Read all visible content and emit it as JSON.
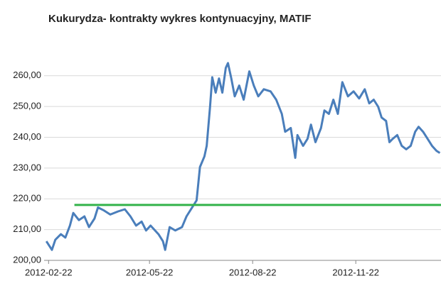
{
  "chart_data": {
    "type": "line",
    "title": "Kukurydza- kontrakty wykres kontynuacyjny, MATIF",
    "series": [
      {
        "color": "#4a7ebb",
        "x": [
          "2012-02-20",
          "2012-02-25",
          "2012-02-28",
          "2012-03-04",
          "2012-03-08",
          "2012-03-12",
          "2012-03-15",
          "2012-03-20",
          "2012-03-25",
          "2012-03-29",
          "2012-04-03",
          "2012-04-06",
          "2012-04-11",
          "2012-04-17",
          "2012-04-24",
          "2012-04-30",
          "2012-05-05",
          "2012-05-10",
          "2012-05-15",
          "2012-05-19",
          "2012-05-23",
          "2012-05-30",
          "2012-06-03",
          "2012-06-05",
          "2012-06-09",
          "2012-06-14",
          "2012-06-20",
          "2012-06-24",
          "2012-06-29",
          "2012-07-03",
          "2012-07-06",
          "2012-07-10",
          "2012-07-12",
          "2012-07-15",
          "2012-07-17",
          "2012-07-20",
          "2012-07-23",
          "2012-07-26",
          "2012-07-29",
          "2012-07-31",
          "2012-08-03",
          "2012-08-06",
          "2012-08-10",
          "2012-08-14",
          "2012-08-19",
          "2012-08-23",
          "2012-08-27",
          "2012-09-01",
          "2012-09-07",
          "2012-09-12",
          "2012-09-17",
          "2012-09-20",
          "2012-09-25",
          "2012-09-29",
          "2012-10-01",
          "2012-10-06",
          "2012-10-10",
          "2012-10-13",
          "2012-10-17",
          "2012-10-22",
          "2012-10-25",
          "2012-10-29",
          "2012-11-02",
          "2012-11-06",
          "2012-11-10",
          "2012-11-15",
          "2012-11-20",
          "2012-11-25",
          "2012-11-30",
          "2012-12-04",
          "2012-12-08",
          "2012-12-12",
          "2012-12-15",
          "2012-12-19",
          "2012-12-22",
          "2012-12-25",
          "2012-12-29",
          "2013-01-02",
          "2013-01-06",
          "2013-01-10",
          "2013-01-14",
          "2013-01-17",
          "2013-01-21",
          "2013-01-25",
          "2013-01-29",
          "2013-02-02",
          "2013-02-05"
        ],
        "values": [
          206.2,
          203.4,
          206.7,
          208.5,
          207.4,
          211.3,
          215.4,
          213.1,
          214.3,
          210.8,
          213.6,
          217.2,
          216.3,
          214.9,
          215.9,
          216.6,
          214.3,
          211.3,
          212.6,
          209.7,
          211.3,
          208.5,
          206.2,
          203.4,
          210.8,
          209.7,
          210.8,
          214.3,
          217.2,
          219.5,
          230.3,
          233.8,
          237.2,
          249.9,
          259.5,
          254.5,
          259.1,
          254.5,
          262.5,
          264.1,
          259.1,
          253.3,
          256.8,
          252.2,
          261.4,
          256.8,
          253.3,
          255.6,
          254.9,
          252.2,
          247.6,
          241.8,
          243.0,
          233.3,
          240.7,
          237.2,
          239.5,
          244.1,
          238.4,
          243.0,
          248.7,
          247.6,
          252.2,
          247.6,
          257.9,
          253.3,
          254.9,
          252.6,
          255.6,
          251.0,
          252.2,
          249.9,
          246.4,
          245.3,
          238.4,
          239.5,
          240.7,
          237.2,
          236.1,
          237.2,
          241.8,
          243.4,
          241.8,
          239.5,
          237.2,
          235.6,
          234.9
        ]
      },
      {
        "color": "#33b34a",
        "x": [
          "2012-03-16",
          "2013-02-06"
        ],
        "values": [
          218,
          218
        ]
      }
    ],
    "xlim": [
      "2012-02-18",
      "2013-02-06"
    ],
    "xticks": [
      "2012-02-22",
      "2012-05-22",
      "2012-08-22",
      "2012-11-22"
    ],
    "ylim": [
      200,
      265
    ],
    "yticks": [
      {
        "value": 200,
        "label": "200,00"
      },
      {
        "value": 210,
        "label": "210,00"
      },
      {
        "value": 220,
        "label": "220,00"
      },
      {
        "value": 230,
        "label": "230,00"
      },
      {
        "value": 240,
        "label": "240,00"
      },
      {
        "value": 250,
        "label": "250,00"
      },
      {
        "value": 260,
        "label": "260,00"
      }
    ],
    "grid": true
  }
}
